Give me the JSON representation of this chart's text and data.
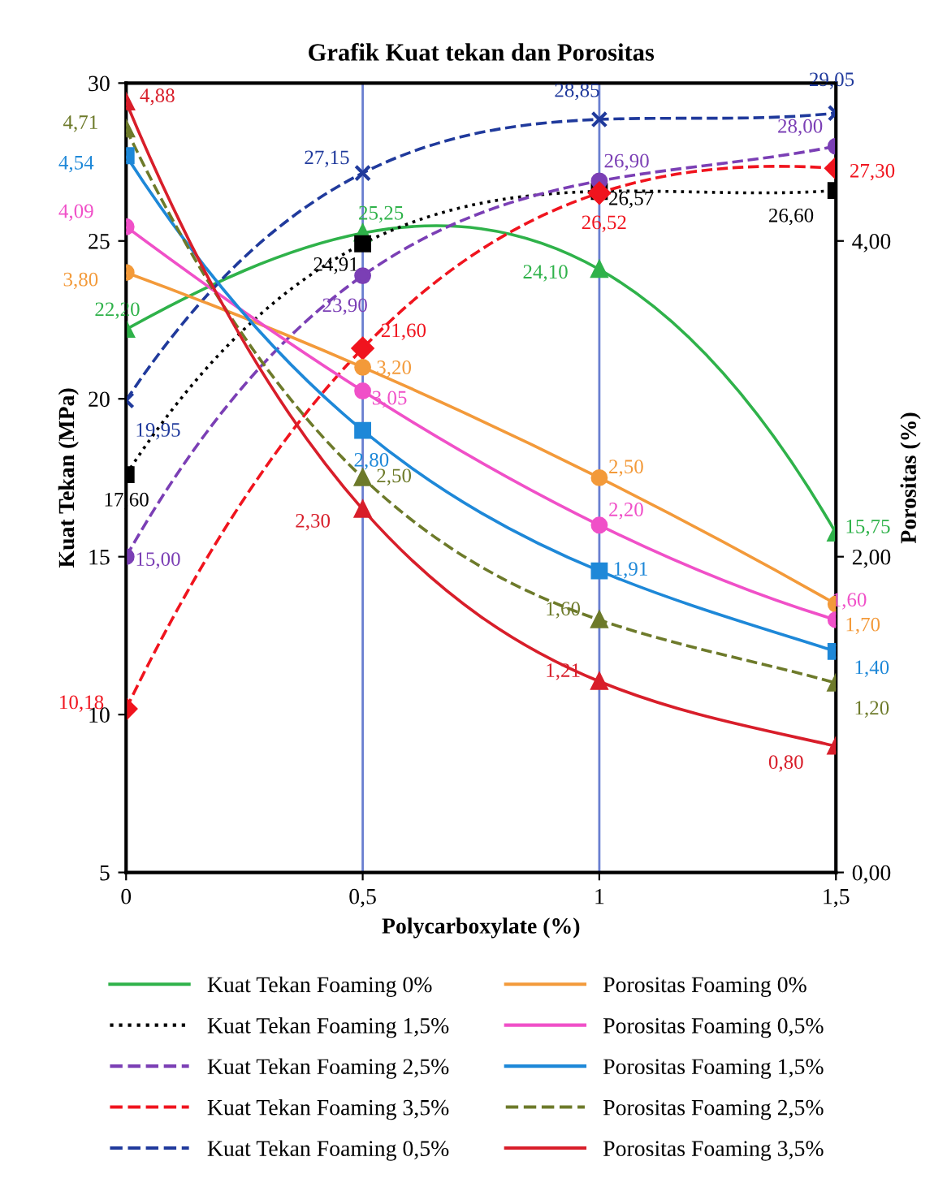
{
  "chart_data": {
    "type": "line",
    "title": "Grafik Kuat tekan dan Porositas",
    "xlabel": "Polycarboxylate (%)",
    "ylabel": "Kuat Tekan (MPa)",
    "y2label": "Porositas (%)",
    "x": [
      0,
      0.5,
      1,
      1.5
    ],
    "xlim": [
      0,
      1.5
    ],
    "xticks": [
      0,
      {
        "value": 0.5,
        "label": "0,5"
      },
      1,
      {
        "value": 1.5,
        "label": "1,5"
      }
    ],
    "ylim": [
      5,
      30
    ],
    "yticks": [
      5,
      10,
      15,
      20,
      25,
      30
    ],
    "y2lim": [
      0,
      5
    ],
    "y2ticks": [
      {
        "value": 0,
        "label": "0,00"
      },
      {
        "value": 2,
        "label": "2,00"
      },
      {
        "value": 4,
        "label": "4,00"
      }
    ],
    "grid": "x",
    "legend": "bottom",
    "series": [
      {
        "name": "Kuat Tekan Foaming 0%",
        "color": "#2fb24a",
        "marker": "triangle",
        "line_style": "solid",
        "values": [
          22.2,
          25.25,
          24.1,
          15.75
        ],
        "value_labels": [
          "22,20",
          "25,25",
          "24,10",
          "15,75"
        ]
      },
      {
        "name": "Kuat Tekan Foaming 1,5%",
        "color": "#000000",
        "marker": "square",
        "line_style": "dotted",
        "values": [
          17.6,
          24.91,
          26.57,
          26.6
        ],
        "value_labels": [
          "17,60",
          "24,91",
          "26,57",
          "26,60"
        ]
      },
      {
        "name": "Kuat Tekan Foaming 2,5%",
        "color": "#7b3fb5",
        "marker": "circle",
        "line_style": "dashed",
        "values": [
          15.0,
          23.9,
          26.9,
          28.0
        ],
        "value_labels": [
          "15,00",
          "23,90",
          "26,90",
          "28,00"
        ]
      },
      {
        "name": "Kuat Tekan Foaming 3,5%",
        "color": "#f0141e",
        "marker": "diamond",
        "line_style": "dashed",
        "values": [
          10.18,
          21.6,
          26.52,
          27.3
        ],
        "value_labels": [
          "10,18",
          "21,60",
          "26,52",
          "27,30"
        ]
      },
      {
        "name": "Kuat Tekan Foaming 0,5%",
        "color": "#203a9c",
        "marker": "cross",
        "line_style": "dashed",
        "values": [
          19.95,
          27.15,
          28.85,
          29.05
        ],
        "value_labels": [
          "19,95",
          "27,15",
          "28,85",
          "29,05"
        ]
      },
      {
        "name": "Porositas Foaming 0%",
        "color": "#f39a3a",
        "marker": "circle",
        "line_style": "solid",
        "axis": "y2",
        "values": [
          3.8,
          3.2,
          2.5,
          1.7
        ],
        "value_labels": [
          "3,80",
          "3,20",
          "2,50",
          "1,70"
        ]
      },
      {
        "name": "Porositas Foaming 0,5%",
        "color": "#f050c8",
        "marker": "circle",
        "line_style": "solid",
        "axis": "y2",
        "values": [
          4.09,
          3.05,
          2.2,
          1.6
        ],
        "value_labels": [
          "4,09",
          "3,05",
          "2,20",
          "1,60"
        ]
      },
      {
        "name": "Porositas Foaming 1,5%",
        "color": "#1e88d8",
        "marker": "square",
        "line_style": "solid",
        "axis": "y2",
        "values": [
          4.54,
          2.8,
          1.91,
          1.4
        ],
        "value_labels": [
          "4,54",
          "2,80",
          "1,91",
          "1,40"
        ]
      },
      {
        "name": "Porositas Foaming 2,5%",
        "color": "#6d7a2a",
        "marker": "triangle",
        "line_style": "dashed",
        "axis": "y2",
        "values": [
          4.71,
          2.5,
          1.6,
          1.2
        ],
        "value_labels": [
          "4,71",
          "2,50",
          "1,60",
          "1,20"
        ]
      },
      {
        "name": "Porositas Foaming 3,5%",
        "color": "#d81e2a",
        "marker": "triangle",
        "line_style": "solid",
        "axis": "y2",
        "values": [
          4.88,
          2.3,
          1.21,
          0.8
        ],
        "value_labels": [
          "4,88",
          "2,30",
          "1,21",
          "0,80"
        ]
      }
    ]
  }
}
